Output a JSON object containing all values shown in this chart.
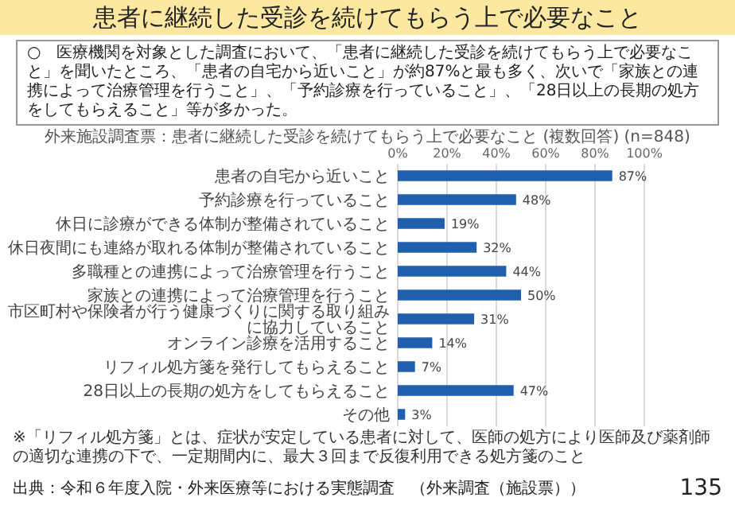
{
  "chart_data": {
    "type": "bar",
    "orientation": "horizontal",
    "title": "患者に継続した受診を続けてもらう上で必要なこと",
    "subtitle": "外来施設調査票：患者に継続した受診を続けてもらう上で必要なこと (複数回答) (n=848)",
    "annotations": [
      "○　医療機関を対象とした調査において、「患者に継続した受診を続けてもらう上で必要なこと」を聞いたところ、「患者の自宅から近いこと」が約87%と最も多く、次いで「家族との連携によって治療管理を行うこと」、「予約診療を行っていること」、「28日以上の長期の処方をしてもらえること」等が多かった。",
      "※「リフィル処方箋」とは、症状が安定している患者に対して、医師の処方により医師及び薬剤師の適切な連携の下で、一定期間内に、最大３回まで反復利用できる処方箋のこと",
      "出典：令和６年度入院・外来医療等における実態調査　（外来調査（施設票））",
      "135"
    ],
    "categories": [
      "患者の自宅から近いこと",
      "予約診療を行っていること",
      "休日に診療ができる体制が整備されていること",
      "休日夜間にも連絡が取れる体制が整備されていること",
      "多職種との連携によって治療管理を行うこと",
      "家族との連携によって治療管理を行うこと",
      "市区町村や保険者が行う健康づくりに関する取り組みに協力していること",
      "オンライン診療を活用すること",
      "リフィル処方箋を発行してもらえること",
      "28日以上の長期の処方をしてもらえること",
      "その他"
    ],
    "values": [
      87,
      48,
      19,
      32,
      44,
      50,
      31,
      14,
      7,
      47,
      3
    ],
    "value_labels": [
      "87%",
      "48%",
      "19%",
      "32%",
      "44%",
      "50%",
      "31%",
      "14%",
      "7%",
      "47%",
      "3%"
    ],
    "color": "#1f5fae",
    "xlim": [
      0,
      100
    ],
    "xticks": [
      {
        "value": 0,
        "label": "0%"
      },
      {
        "value": 20,
        "label": "20%"
      },
      {
        "value": 40,
        "label": "40%"
      },
      {
        "value": 60,
        "label": "60%"
      },
      {
        "value": 80,
        "label": "80%"
      },
      {
        "value": 100,
        "label": "100%"
      }
    ],
    "grid": "x"
  }
}
